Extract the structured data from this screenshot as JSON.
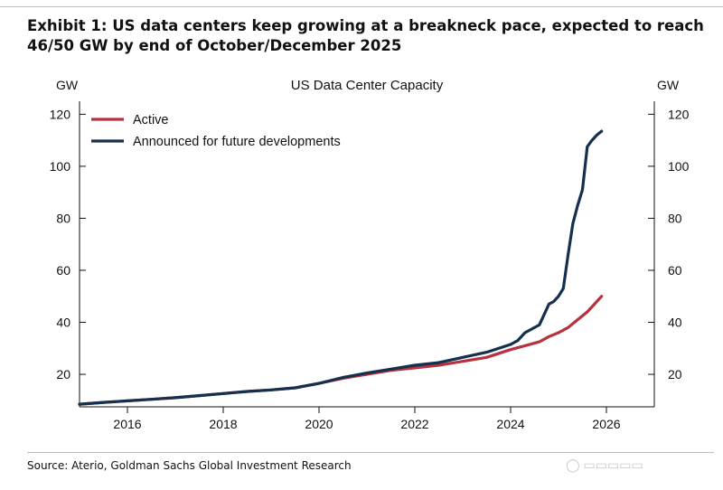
{
  "header": {
    "exhibit_title": "Exhibit 1: US data centers keep growing at a breakneck pace, expected to reach 46/50 GW by end of October/December 2025"
  },
  "footer": {
    "source": "Source: Aterio, Goldman Sachs Global Investment Research"
  },
  "watermark_icon": "camera-icon",
  "chart_data": {
    "type": "line",
    "title": "US Data Center Capacity",
    "ylabel_left": "GW",
    "ylabel_right": "GW",
    "xlim": [
      2015.0,
      2027.0
    ],
    "ylim": [
      7.5,
      125
    ],
    "x_ticks": [
      2016,
      2018,
      2020,
      2022,
      2024,
      2026
    ],
    "y_ticks": [
      20,
      40,
      60,
      80,
      100,
      120
    ],
    "x_tick_labels": [
      "2016",
      "2018",
      "2020",
      "2022",
      "2024",
      "2026"
    ],
    "y_tick_labels": [
      "20",
      "40",
      "60",
      "80",
      "100",
      "120"
    ],
    "legend": {
      "position": "top-left"
    },
    "series": [
      {
        "name": "Active",
        "color": "#b5323e",
        "x": [
          2015.0,
          2015.5,
          2016.0,
          2016.5,
          2017.0,
          2017.5,
          2018.0,
          2018.5,
          2019.0,
          2019.5,
          2020.0,
          2020.5,
          2021.0,
          2021.5,
          2022.0,
          2022.5,
          2023.0,
          2023.5,
          2024.0,
          2024.3,
          2024.6,
          2024.8,
          2025.0,
          2025.2,
          2025.4,
          2025.6,
          2025.75,
          2025.9
        ],
        "values": [
          8.5,
          9.2,
          9.8,
          10.4,
          11.0,
          11.8,
          12.6,
          13.4,
          14.0,
          14.8,
          16.5,
          18.5,
          20.0,
          21.5,
          22.5,
          23.5,
          25.0,
          26.5,
          29.5,
          31.0,
          32.5,
          34.5,
          36.0,
          38.0,
          41.0,
          44.0,
          47.0,
          50.0
        ]
      },
      {
        "name": "Announced for future developments",
        "color": "#14304d",
        "x": [
          2015.0,
          2015.5,
          2016.0,
          2016.5,
          2017.0,
          2017.5,
          2018.0,
          2018.5,
          2019.0,
          2019.5,
          2020.0,
          2020.5,
          2021.0,
          2021.5,
          2022.0,
          2022.5,
          2023.0,
          2023.5,
          2024.0,
          2024.15,
          2024.3,
          2024.6,
          2024.8,
          2024.9,
          2025.0,
          2025.1,
          2025.2,
          2025.3,
          2025.4,
          2025.5,
          2025.6,
          2025.7,
          2025.8,
          2025.9
        ],
        "values": [
          8.5,
          9.2,
          9.8,
          10.4,
          11.0,
          11.8,
          12.6,
          13.4,
          14.0,
          14.8,
          16.5,
          18.8,
          20.5,
          22.0,
          23.5,
          24.5,
          26.5,
          28.5,
          31.5,
          33.0,
          36.0,
          39.0,
          47.0,
          48.0,
          50.0,
          53.0,
          66.0,
          78.0,
          85.0,
          91.0,
          107.5,
          110.0,
          112.0,
          113.5
        ]
      }
    ]
  }
}
